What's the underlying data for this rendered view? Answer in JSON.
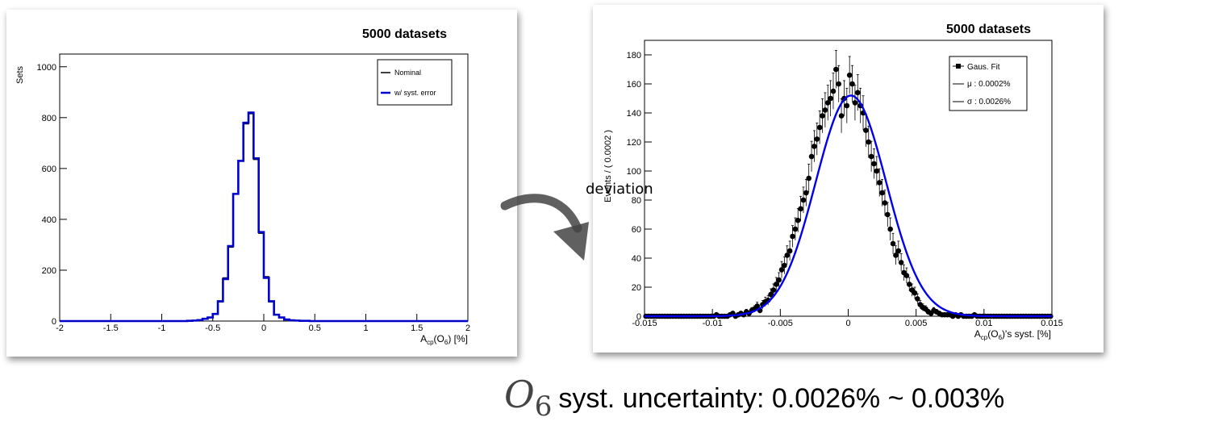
{
  "annotation": {
    "arrow_label": "deviation",
    "caption_symbol": "O",
    "caption_subscript": "6",
    "caption_text": "syst. uncertainty: 0.0026% ~ 0.003%"
  },
  "chart_data": [
    {
      "type": "histogram",
      "title": "5000 datasets",
      "xlabel": "A_cp(O_6) [%]",
      "ylabel": "Sets",
      "xlim": [
        -2,
        2
      ],
      "ylim": [
        0,
        1050
      ],
      "x_ticks": [
        "-2",
        "-1.5",
        "-1",
        "-0.5",
        "0",
        "0.5",
        "1",
        "1.5",
        "2"
      ],
      "x_tick_values": [
        -2,
        -1.5,
        -1,
        -0.5,
        0,
        0.5,
        1,
        1.5,
        2
      ],
      "y_ticks": [
        "0",
        "200",
        "400",
        "600",
        "800",
        "1000"
      ],
      "y_tick_values": [
        0,
        200,
        400,
        600,
        800,
        1000
      ],
      "bin_edges": [
        -0.75,
        -0.7,
        -0.65,
        -0.6,
        -0.55,
        -0.5,
        -0.45,
        -0.4,
        -0.35,
        -0.3,
        -0.25,
        -0.2,
        -0.15,
        -0.1,
        -0.05,
        0.0,
        0.05,
        0.1,
        0.15,
        0.2,
        0.25,
        0.3,
        0.35,
        0.4,
        0.45,
        0.5,
        0.55,
        0.6,
        0.65
      ],
      "legend_position": "top-right",
      "series": [
        {
          "name": "Nominal",
          "color": "#000000",
          "values": [
            1,
            2,
            4,
            8,
            13,
            30,
            75,
            170,
            290,
            500,
            630,
            775,
            815,
            635,
            345,
            175,
            75,
            26,
            15,
            6,
            3,
            2,
            1,
            1,
            0,
            0,
            0,
            0
          ]
        },
        {
          "name": "w/ syst. error",
          "color": "#0000cc",
          "values": [
            1,
            2,
            4,
            9,
            14,
            28,
            78,
            165,
            295,
            500,
            630,
            780,
            820,
            640,
            350,
            170,
            78,
            25,
            14,
            6,
            3,
            2,
            1,
            1,
            0,
            0,
            0,
            0
          ]
        }
      ]
    },
    {
      "type": "scatter",
      "title": "5000 datasets",
      "xlabel": "A_cp(O_6)'s syst. [%]",
      "ylabel": "Events / ( 0.0002 )",
      "xlim": [
        -0.015,
        0.015
      ],
      "ylim": [
        0,
        190
      ],
      "x_ticks": [
        "-0.015",
        "-0.01",
        "-0.005",
        "0",
        "0.005",
        "0.01",
        "0.015"
      ],
      "x_tick_values": [
        -0.015,
        -0.01,
        -0.005,
        0,
        0.005,
        0.01,
        0.015
      ],
      "y_ticks": [
        "0",
        "20",
        "40",
        "60",
        "80",
        "100",
        "120",
        "140",
        "160",
        "180"
      ],
      "y_tick_values": [
        0,
        20,
        40,
        60,
        80,
        100,
        120,
        140,
        160,
        180
      ],
      "legend_position": "top-right",
      "legend": [
        {
          "label": "Gaus. Fit",
          "marker": "square"
        },
        {
          "label": "μ : 0.0002%",
          "marker": "line"
        },
        {
          "label": "σ : 0.0026%",
          "marker": "line"
        }
      ],
      "fit": {
        "name": "Gaus. Fit",
        "mean": 0.0002,
        "sigma": 0.0026,
        "amplitude": 152,
        "color": "#0000ee"
      },
      "series": [
        {
          "name": "Gaus. Fit",
          "color": "#000000",
          "x": [
            -0.0149,
            -0.0147,
            -0.0145,
            -0.0143,
            -0.0141,
            -0.0139,
            -0.0137,
            -0.0135,
            -0.0133,
            -0.0131,
            -0.0129,
            -0.0127,
            -0.0125,
            -0.0123,
            -0.0121,
            -0.0119,
            -0.0117,
            -0.0115,
            -0.0113,
            -0.0111,
            -0.0109,
            -0.0107,
            -0.0105,
            -0.0103,
            -0.0101,
            -0.0099,
            -0.0097,
            -0.0095,
            -0.0093,
            -0.0091,
            -0.0089,
            -0.0087,
            -0.0085,
            -0.0083,
            -0.0081,
            -0.0079,
            -0.0077,
            -0.0075,
            -0.0073,
            -0.0071,
            -0.0069,
            -0.0067,
            -0.0065,
            -0.0063,
            -0.0061,
            -0.0059,
            -0.0057,
            -0.0055,
            -0.0053,
            -0.0051,
            -0.0049,
            -0.0047,
            -0.0045,
            -0.0043,
            -0.0041,
            -0.0039,
            -0.0037,
            -0.0035,
            -0.0033,
            -0.0031,
            -0.0029,
            -0.0027,
            -0.0025,
            -0.0023,
            -0.0021,
            -0.0019,
            -0.0017,
            -0.0015,
            -0.0013,
            -0.0011,
            -0.0009,
            -0.0007,
            -0.0005,
            -0.0003,
            -0.0001,
            0.0001,
            0.0003,
            0.0005,
            0.0007,
            0.0009,
            0.0011,
            0.0013,
            0.0015,
            0.0017,
            0.0019,
            0.0021,
            0.0023,
            0.0025,
            0.0027,
            0.0029,
            0.0031,
            0.0033,
            0.0035,
            0.0037,
            0.0039,
            0.0041,
            0.0043,
            0.0045,
            0.0047,
            0.0049,
            0.0051,
            0.0053,
            0.0055,
            0.0057,
            0.0059,
            0.0061,
            0.0063,
            0.0065,
            0.0067,
            0.0069,
            0.0071,
            0.0073,
            0.0075,
            0.0077,
            0.0079,
            0.0081,
            0.0083,
            0.0085,
            0.0087,
            0.0089,
            0.0091,
            0.0093,
            0.0095,
            0.0097,
            0.0099,
            0.0101,
            0.0103,
            0.0105,
            0.0107,
            0.0109,
            0.0111,
            0.0113,
            0.0115,
            0.0117,
            0.0119,
            0.0121,
            0.0123,
            0.0125,
            0.0127,
            0.0129,
            0.0131,
            0.0133,
            0.0135,
            0.0137,
            0.0139,
            0.0141,
            0.0143,
            0.0145,
            0.0147,
            0.0149
          ],
          "y": [
            0,
            0,
            0,
            0,
            0,
            0,
            0,
            0,
            0,
            0,
            0,
            0,
            0,
            0,
            0,
            0,
            0,
            0,
            0,
            0,
            0,
            0,
            0,
            0,
            0,
            0,
            1,
            0,
            0,
            0,
            0,
            1,
            2,
            0,
            1,
            2,
            1,
            3,
            2,
            4,
            5,
            7,
            4,
            8,
            10,
            11,
            15,
            18,
            22,
            25,
            32,
            35,
            42,
            45,
            55,
            60,
            66,
            74,
            80,
            85,
            95,
            110,
            117,
            122,
            130,
            138,
            142,
            147,
            150,
            155,
            170,
            160,
            138,
            150,
            145,
            166,
            160,
            147,
            154,
            145,
            140,
            128,
            120,
            110,
            105,
            100,
            92,
            85,
            78,
            70,
            60,
            50,
            42,
            45,
            37,
            30,
            28,
            22,
            18,
            16,
            12,
            8,
            6,
            5,
            3,
            2,
            4,
            3,
            2,
            1,
            1,
            1,
            1,
            0,
            1,
            0,
            1,
            0,
            0,
            0,
            0,
            1,
            0,
            0,
            0,
            0,
            0,
            0,
            0,
            0,
            0,
            0,
            0,
            0,
            0,
            0,
            0,
            0,
            0,
            0,
            0,
            0,
            0,
            0,
            0,
            0,
            0,
            0,
            0,
            0
          ]
        }
      ]
    }
  ]
}
